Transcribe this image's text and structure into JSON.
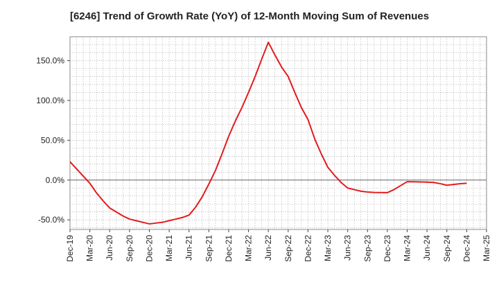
{
  "chart_data": {
    "type": "line",
    "title": "[6246]  Trend of Growth Rate (YoY) of 12-Month Moving Sum of Revenues",
    "xlabel": "",
    "ylabel": "",
    "x_tick_labels": [
      "Dec-19",
      "Mar-20",
      "Jun-20",
      "Sep-20",
      "Dec-20",
      "Mar-21",
      "Jun-21",
      "Sep-21",
      "Dec-21",
      "Mar-22",
      "Jun-22",
      "Sep-22",
      "Dec-22",
      "Mar-23",
      "Jun-23",
      "Sep-23",
      "Dec-23",
      "Mar-24",
      "Jun-24",
      "Sep-24",
      "Dec-24",
      "Mar-25"
    ],
    "y_ticks": [
      -50,
      0,
      50,
      100,
      150
    ],
    "y_tick_labels": [
      "-50.0%",
      "0.0%",
      "50.0%",
      "100.0%",
      "150.0%"
    ],
    "ylim": [
      -62,
      180
    ],
    "grid": true,
    "series": [
      {
        "color": "#e31a1c",
        "x": [
          "Dec-19",
          "Jan-20",
          "Feb-20",
          "Mar-20",
          "Apr-20",
          "May-20",
          "Jun-20",
          "Jul-20",
          "Aug-20",
          "Sep-20",
          "Oct-20",
          "Nov-20",
          "Dec-20",
          "Jan-21",
          "Feb-21",
          "Mar-21",
          "Apr-21",
          "May-21",
          "Jun-21",
          "Jul-21",
          "Aug-21",
          "Sep-21",
          "Oct-21",
          "Nov-21",
          "Dec-21",
          "Jan-22",
          "Feb-22",
          "Mar-22",
          "Apr-22",
          "May-22",
          "Jun-22",
          "Jul-22",
          "Aug-22",
          "Sep-22",
          "Oct-22",
          "Nov-22",
          "Dec-22",
          "Jan-23",
          "Feb-23",
          "Mar-23",
          "Apr-23",
          "May-23",
          "Jun-23",
          "Jul-23",
          "Aug-23",
          "Sep-23",
          "Oct-23",
          "Nov-23",
          "Dec-23",
          "Jan-24",
          "Feb-24",
          "Mar-24",
          "Apr-24",
          "May-24",
          "Jun-24",
          "Jul-24",
          "Aug-24",
          "Sep-24",
          "Oct-24",
          "Nov-24",
          "Dec-24"
        ],
        "values": [
          23,
          14,
          5,
          -4,
          -16,
          -26,
          -35,
          -40,
          -45,
          -49,
          -51,
          -53,
          -55,
          -54,
          -53,
          -51,
          -49,
          -47,
          -44,
          -34,
          -21,
          -5,
          12,
          33,
          55,
          74,
          91,
          110,
          130,
          152,
          173,
          157,
          142,
          130,
          110,
          91,
          76,
          52,
          33,
          16,
          6,
          -3,
          -10,
          -12,
          -14,
          -15,
          -15.5,
          -15.7,
          -15.8,
          -12,
          -7,
          -2,
          -2.2,
          -2.4,
          -2.6,
          -3,
          -4.5,
          -6.5,
          -5.5,
          -4.5,
          -4
        ]
      }
    ]
  }
}
